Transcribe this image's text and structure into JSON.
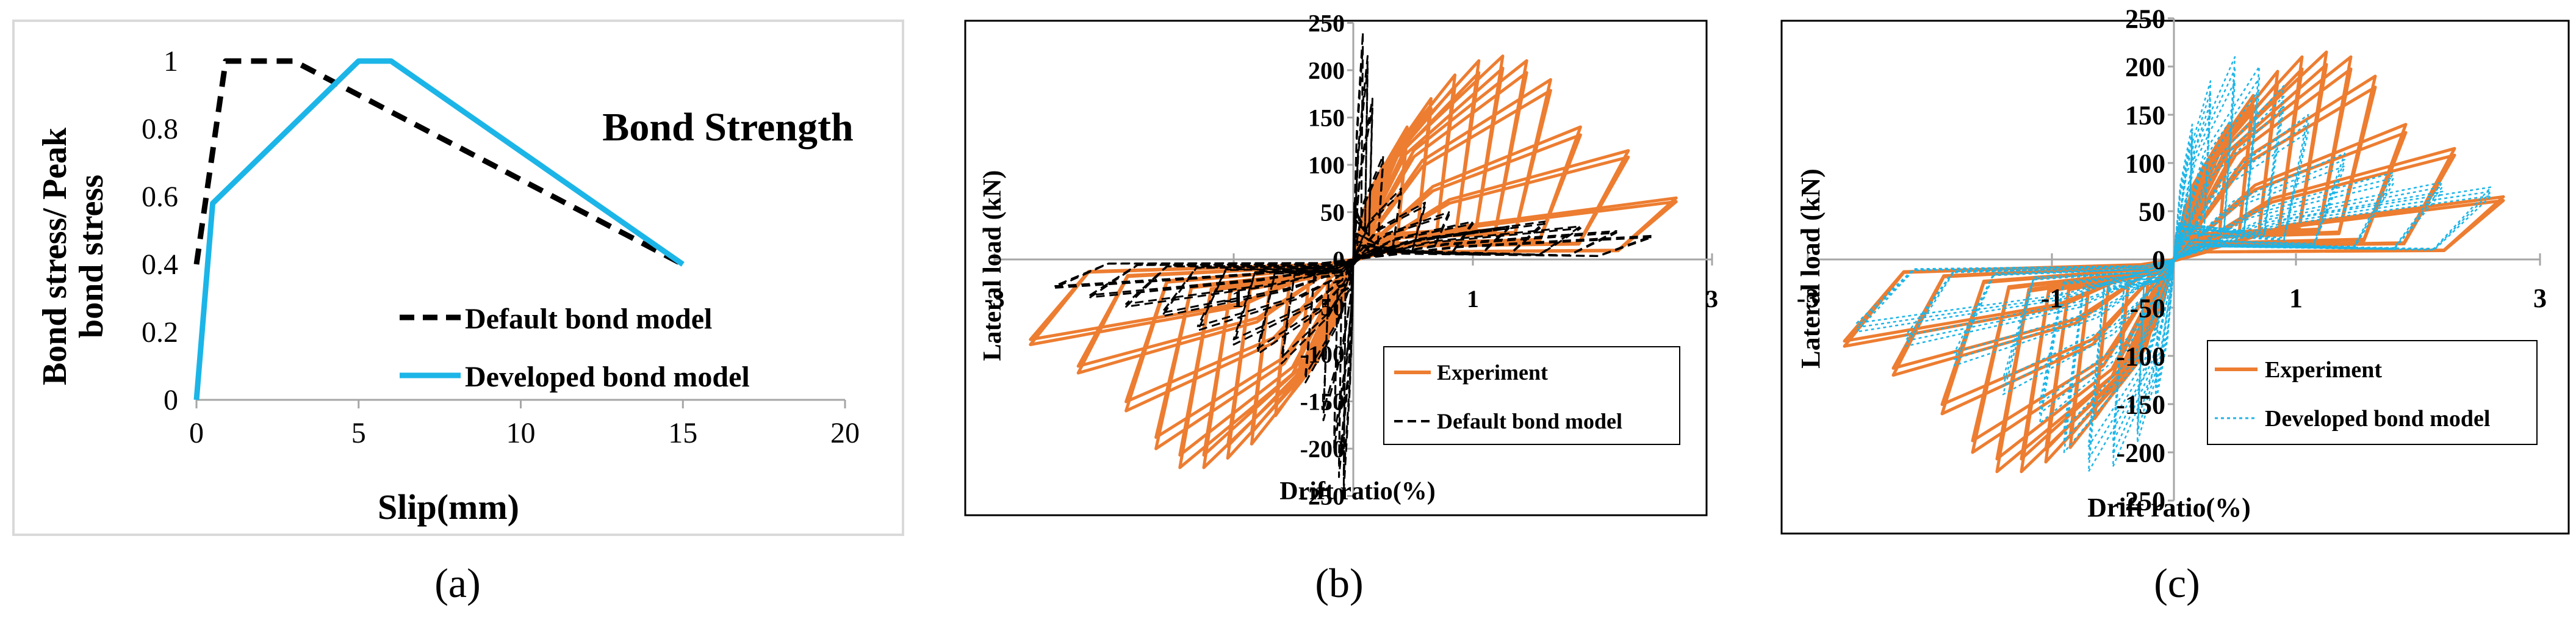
{
  "colors": {
    "experiment": "#ED7D31",
    "developed": "#1CB5E8",
    "default": "#000000",
    "axis": "#A6A6A6",
    "frame": "#D9D9D9",
    "frame_dark": "#000000"
  },
  "chart_data": [
    {
      "id": "a",
      "type": "line",
      "panel_label": "(a)",
      "title": "Bond Strength",
      "xlabel": "Slip(mm)",
      "ylabel_line1": "Bond stress/ Peak",
      "ylabel_line2": "bond stress",
      "xlim": [
        0,
        20
      ],
      "ylim": [
        0,
        1
      ],
      "x_ticks": [
        "0",
        "5",
        "10",
        "15",
        "20"
      ],
      "y_ticks": [
        "0",
        "0.2",
        "0.4",
        "0.6",
        "0.8",
        "1"
      ],
      "legend_position": "bottom-center",
      "series": [
        {
          "name": "Default bond model",
          "style": "dashed",
          "x": [
            0,
            0.9,
            3,
            15
          ],
          "y": [
            0.4,
            1,
            1,
            0.4
          ]
        },
        {
          "name": "Developed bond model",
          "style": "solid",
          "x": [
            0,
            0.5,
            5,
            6,
            15
          ],
          "y": [
            0,
            0.58,
            1,
            1,
            0.4
          ]
        }
      ]
    },
    {
      "id": "b",
      "type": "line",
      "panel_label": "(b)",
      "xlabel": "Drift ratio(%)",
      "ylabel": "Lateral load (kN)",
      "xlim": [
        -3,
        3
      ],
      "ylim": [
        -250,
        250
      ],
      "x_ticks": [
        "-3",
        "-1",
        "1",
        "3"
      ],
      "y_ticks": [
        "-250",
        "-200",
        "-150",
        "-100",
        "-50",
        "0",
        "50",
        "100",
        "150",
        "200",
        "250"
      ],
      "legend_position": "bottom-right",
      "series": [
        {
          "name": "Experiment",
          "style": "solid",
          "kind": "hysteresis",
          "cycle_peak_drift_pct": [
            0.25,
            0.45,
            0.65,
            0.85,
            1.05,
            1.25,
            1.45,
            1.65,
            1.9,
            2.3,
            2.7
          ],
          "cycle_peak_load_pos_kN": [
            95,
            140,
            170,
            195,
            210,
            215,
            210,
            190,
            140,
            115,
            65
          ],
          "cycle_peak_load_neg_kN": [
            -80,
            -125,
            -165,
            -195,
            -210,
            -220,
            -220,
            -200,
            -160,
            -120,
            -90
          ]
        },
        {
          "name": "Default bond model",
          "style": "dashed",
          "kind": "hysteresis",
          "cycle_peak_drift_pct": [
            0.08,
            0.12,
            0.16,
            0.25,
            0.4,
            0.6,
            0.8,
            1.0,
            1.3,
            1.6,
            1.9,
            2.2,
            2.5
          ],
          "cycle_peak_load_pos_kN": [
            240,
            215,
            170,
            110,
            75,
            60,
            50,
            40,
            35,
            40,
            35,
            30,
            25
          ],
          "cycle_peak_load_neg_kN": [
            -245,
            -230,
            -200,
            -170,
            -130,
            -110,
            -100,
            -90,
            -75,
            -60,
            -50,
            -40,
            -30
          ]
        }
      ]
    },
    {
      "id": "c",
      "type": "line",
      "panel_label": "(c)",
      "xlabel": "Drift ratio(%)",
      "ylabel": "Lateral load (kN)",
      "xlim": [
        -3,
        3
      ],
      "ylim": [
        -250,
        250
      ],
      "x_ticks": [
        "-3",
        "-1",
        "1",
        "3"
      ],
      "y_ticks": [
        "-250",
        "-200",
        "-150",
        "-100",
        "-50",
        "0",
        "50",
        "100",
        "150",
        "200",
        "250"
      ],
      "legend_position": "bottom-right",
      "series": [
        {
          "name": "Experiment",
          "style": "solid",
          "kind": "hysteresis",
          "cycle_peak_drift_pct": [
            0.25,
            0.45,
            0.65,
            0.85,
            1.05,
            1.25,
            1.45,
            1.65,
            1.9,
            2.3,
            2.7
          ],
          "cycle_peak_load_pos_kN": [
            95,
            140,
            170,
            195,
            210,
            215,
            210,
            190,
            140,
            115,
            65
          ],
          "cycle_peak_load_neg_kN": [
            -80,
            -125,
            -165,
            -195,
            -210,
            -220,
            -220,
            -200,
            -160,
            -120,
            -90
          ]
        },
        {
          "name": "Developed bond model",
          "style": "dotted",
          "kind": "hysteresis",
          "cycle_peak_drift_pct": [
            0.15,
            0.3,
            0.5,
            0.7,
            0.9,
            1.1,
            1.4,
            1.8,
            2.2,
            2.6
          ],
          "cycle_peak_load_pos_kN": [
            140,
            185,
            210,
            200,
            180,
            150,
            110,
            90,
            80,
            75
          ],
          "cycle_peak_load_neg_kN": [
            -150,
            -190,
            -215,
            -220,
            -200,
            -170,
            -140,
            -110,
            -90,
            -75
          ]
        }
      ]
    }
  ]
}
